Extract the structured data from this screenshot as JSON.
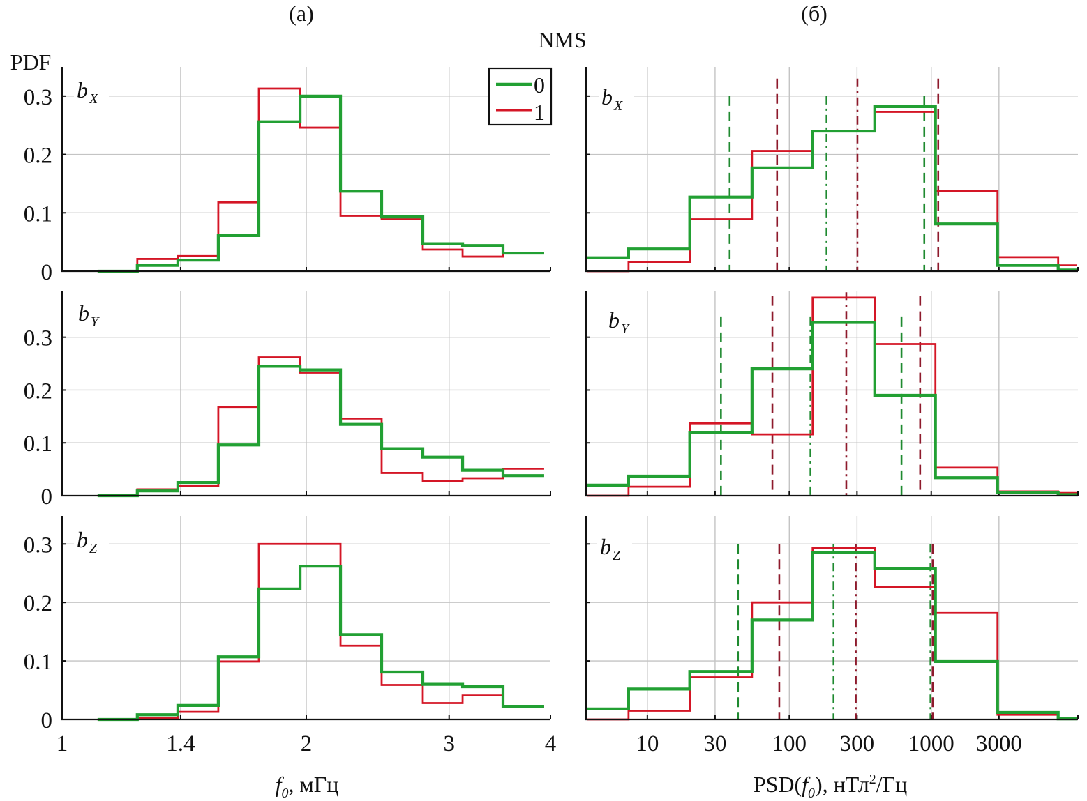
{
  "figure": {
    "title": "NMS",
    "panel_letters": [
      "(a)",
      "(б)"
    ],
    "ylabel": "PDF",
    "legend": {
      "entries": [
        {
          "label": "0",
          "color": "#22a033"
        },
        {
          "label": "1",
          "color": "#d41626"
        }
      ]
    },
    "colors": {
      "series_0": "#22a033",
      "series_1": "#d41626",
      "vline_0": "#1f8a30",
      "vline_1": "#8e1a2c",
      "grid": "#c4c4c4"
    }
  },
  "chart_data": [
    {
      "id": "a-bx",
      "type": "line",
      "subtype": "step-histogram",
      "column": "a",
      "row": 0,
      "component": "b",
      "component_sub": "X",
      "xscale": "log",
      "xlim": [
        1,
        4
      ],
      "ylim": [
        0,
        0.35
      ],
      "xticks": [
        1,
        1.4,
        2,
        3,
        4
      ],
      "xtick_labels": [
        "1",
        "1.4",
        "2",
        "3",
        "4"
      ],
      "xgrid": [
        1.4,
        2,
        3
      ],
      "yticks": [
        0,
        0.1,
        0.2,
        0.3
      ],
      "ytick_labels": [
        "0",
        "0.1",
        "0.2",
        "0.3"
      ],
      "show_xtick_labels": false,
      "show_ytick_labels": true,
      "grid": true,
      "bin_edges": [
        1.106,
        1.238,
        1.389,
        1.558,
        1.748,
        1.965,
        2.204,
        2.477,
        2.784,
        3.117,
        3.496,
        3.929
      ],
      "series": [
        {
          "name": "0",
          "values": [
            0.0,
            0.01,
            0.019,
            0.061,
            0.256,
            0.3,
            0.137,
            0.093,
            0.047,
            0.044,
            0.031
          ]
        },
        {
          "name": "1",
          "values": [
            0.0,
            0.021,
            0.026,
            0.118,
            0.313,
            0.246,
            0.095,
            0.089,
            0.037,
            0.025,
            0.031
          ]
        }
      ],
      "vlines": []
    },
    {
      "id": "b-bx",
      "type": "line",
      "subtype": "step-histogram",
      "column": "b",
      "row": 0,
      "component": "b",
      "component_sub": "X",
      "xscale": "log",
      "xlim": [
        3.7,
        10800
      ],
      "ylim": [
        0,
        0.35
      ],
      "xticks": [
        10,
        30,
        100,
        300,
        1000,
        3000
      ],
      "xtick_labels": [
        "10",
        "30",
        "100",
        "300",
        "1000",
        "3000"
      ],
      "xgrid": [
        10,
        30,
        100,
        300,
        1000,
        3000
      ],
      "yticks": [
        0,
        0.1,
        0.2,
        0.3
      ],
      "ytick_labels": [
        "",
        "",
        "",
        ""
      ],
      "show_xtick_labels": false,
      "show_ytick_labels": false,
      "grid": true,
      "bin_edges": [
        3.74,
        7.37,
        19.9,
        54.6,
        146,
        400,
        1070,
        2930,
        7840,
        10640
      ],
      "series": [
        {
          "name": "0",
          "values": [
            0.023,
            0.038,
            0.127,
            0.177,
            0.24,
            0.282,
            0.081,
            0.01,
            0.002
          ]
        },
        {
          "name": "1",
          "values": [
            0.0,
            0.016,
            0.089,
            0.206,
            0.24,
            0.273,
            0.137,
            0.024,
            0.01
          ]
        }
      ],
      "vlines": [
        {
          "series": "0",
          "style": "dashed",
          "x": 38,
          "top": 0.3
        },
        {
          "series": "1",
          "style": "dashed",
          "x": 82,
          "top": 0.33
        },
        {
          "series": "0",
          "style": "dashdot",
          "x": 183,
          "top": 0.3
        },
        {
          "series": "1",
          "style": "dashdot",
          "x": 302,
          "top": 0.33
        },
        {
          "series": "0",
          "style": "dashed",
          "x": 893,
          "top": 0.3
        },
        {
          "series": "1",
          "style": "dashed",
          "x": 1120,
          "top": 0.33
        }
      ]
    },
    {
      "id": "a-by",
      "type": "line",
      "subtype": "step-histogram",
      "column": "a",
      "row": 1,
      "component": "b",
      "component_sub": "Y",
      "xscale": "log",
      "xlim": [
        1,
        4
      ],
      "ylim": [
        0,
        0.388
      ],
      "xticks": [
        1,
        1.4,
        2,
        3,
        4
      ],
      "xtick_labels": [
        "1",
        "1.4",
        "2",
        "3",
        "4"
      ],
      "xgrid": [
        1.4,
        2,
        3
      ],
      "yticks": [
        0,
        0.1,
        0.2,
        0.3
      ],
      "ytick_labels": [
        "0",
        "0.1",
        "0.2",
        "0.3"
      ],
      "show_xtick_labels": false,
      "show_ytick_labels": true,
      "grid": true,
      "bin_edges": [
        1.106,
        1.238,
        1.389,
        1.558,
        1.748,
        1.965,
        2.204,
        2.477,
        2.784,
        3.117,
        3.496,
        3.929
      ],
      "series": [
        {
          "name": "0",
          "values": [
            0.0,
            0.009,
            0.025,
            0.096,
            0.245,
            0.238,
            0.135,
            0.089,
            0.073,
            0.048,
            0.038
          ]
        },
        {
          "name": "1",
          "values": [
            0.0,
            0.012,
            0.018,
            0.168,
            0.262,
            0.233,
            0.146,
            0.043,
            0.028,
            0.033,
            0.051
          ]
        }
      ],
      "vlines": []
    },
    {
      "id": "b-by",
      "type": "line",
      "subtype": "step-histogram",
      "column": "b",
      "row": 1,
      "component": "b",
      "component_sub": "Y",
      "xscale": "log",
      "xlim": [
        3.7,
        10800
      ],
      "ylim": [
        0,
        0.388
      ],
      "xticks": [
        10,
        30,
        100,
        300,
        1000,
        3000
      ],
      "xtick_labels": [
        "10",
        "30",
        "100",
        "300",
        "1000",
        "3000"
      ],
      "xgrid": [
        10,
        30,
        100,
        300,
        1000,
        3000
      ],
      "yticks": [
        0,
        0.1,
        0.2,
        0.3
      ],
      "ytick_labels": [
        "",
        "",
        "",
        ""
      ],
      "show_xtick_labels": false,
      "show_ytick_labels": false,
      "grid": true,
      "bin_edges": [
        3.74,
        7.37,
        19.9,
        54.6,
        146,
        400,
        1070,
        2930,
        7840,
        10640
      ],
      "series": [
        {
          "name": "0",
          "values": [
            0.02,
            0.037,
            0.12,
            0.24,
            0.328,
            0.19,
            0.034,
            0.006,
            0.002
          ]
        },
        {
          "name": "1",
          "values": [
            0.0,
            0.017,
            0.137,
            0.116,
            0.375,
            0.287,
            0.053,
            0.008,
            0.005
          ]
        }
      ],
      "vlines": [
        {
          "series": "0",
          "style": "dashed",
          "x": 33,
          "top": 0.338
        },
        {
          "series": "1",
          "style": "dashed",
          "x": 76,
          "top": 0.378
        },
        {
          "series": "0",
          "style": "dashdot",
          "x": 141,
          "top": 0.338
        },
        {
          "series": "1",
          "style": "dashdot",
          "x": 252,
          "top": 0.385
        },
        {
          "series": "0",
          "style": "dashed",
          "x": 617,
          "top": 0.338
        },
        {
          "series": "1",
          "style": "dashed",
          "x": 835,
          "top": 0.378
        }
      ]
    },
    {
      "id": "a-bz",
      "type": "line",
      "subtype": "step-histogram",
      "column": "a",
      "row": 2,
      "component": "b",
      "component_sub": "Z",
      "xscale": "log",
      "xlim": [
        1,
        4
      ],
      "ylim": [
        0,
        0.348
      ],
      "xticks": [
        1,
        1.4,
        2,
        3,
        4
      ],
      "xtick_labels": [
        "1",
        "1.4",
        "2",
        "3",
        "4"
      ],
      "xgrid": [
        1.4,
        2,
        3
      ],
      "yticks": [
        0,
        0.1,
        0.2,
        0.3
      ],
      "ytick_labels": [
        "0",
        "0.1",
        "0.2",
        "0.3"
      ],
      "show_xtick_labels": true,
      "show_ytick_labels": true,
      "grid": true,
      "xlabel": "f",
      "xlabel_sub": "0",
      "xlabel_rest": ", мГц",
      "bin_edges": [
        1.106,
        1.238,
        1.389,
        1.558,
        1.748,
        1.965,
        2.204,
        2.477,
        2.784,
        3.117,
        3.496,
        3.929
      ],
      "series": [
        {
          "name": "0",
          "values": [
            0.0,
            0.008,
            0.024,
            0.107,
            0.223,
            0.262,
            0.145,
            0.081,
            0.06,
            0.056,
            0.022
          ]
        },
        {
          "name": "1",
          "values": [
            0.0,
            0.002,
            0.013,
            0.099,
            0.3,
            0.3,
            0.126,
            0.059,
            0.028,
            0.041,
            0.022
          ]
        }
      ],
      "vlines": []
    },
    {
      "id": "b-bz",
      "type": "line",
      "subtype": "step-histogram",
      "column": "b",
      "row": 2,
      "component": "b",
      "component_sub": "Z",
      "xscale": "log",
      "xlim": [
        3.7,
        10800
      ],
      "ylim": [
        0,
        0.348
      ],
      "xticks": [
        10,
        30,
        100,
        300,
        1000,
        3000
      ],
      "xtick_labels": [
        "10",
        "30",
        "100",
        "300",
        "1000",
        "3000"
      ],
      "xgrid": [
        10,
        30,
        100,
        300,
        1000,
        3000
      ],
      "yticks": [
        0,
        0.1,
        0.2,
        0.3
      ],
      "ytick_labels": [
        "",
        "",
        "",
        ""
      ],
      "show_xtick_labels": true,
      "show_ytick_labels": false,
      "grid": true,
      "xlabel": "PSD(",
      "xlabel_f": "f",
      "xlabel_sub": "0",
      "xlabel_rest": "), нТл",
      "xlabel_sup": "2",
      "xlabel_tail": "/Гц",
      "bin_edges": [
        3.74,
        7.37,
        19.9,
        54.6,
        146,
        400,
        1070,
        2930,
        7840,
        10640
      ],
      "series": [
        {
          "name": "0",
          "values": [
            0.018,
            0.052,
            0.082,
            0.17,
            0.285,
            0.258,
            0.099,
            0.012,
            0.001
          ]
        },
        {
          "name": "1",
          "values": [
            0.0,
            0.015,
            0.072,
            0.2,
            0.293,
            0.226,
            0.182,
            0.008,
            0.001
          ]
        }
      ],
      "vlines": [
        {
          "series": "0",
          "style": "dashed",
          "x": 43.5,
          "top": 0.3
        },
        {
          "series": "1",
          "style": "dashed",
          "x": 85,
          "top": 0.3
        },
        {
          "series": "0",
          "style": "dashdot",
          "x": 205,
          "top": 0.3
        },
        {
          "series": "1",
          "style": "dashdot",
          "x": 294,
          "top": 0.3
        },
        {
          "series": "0",
          "style": "dashdot",
          "x": 988,
          "top": 0.3
        },
        {
          "series": "1",
          "style": "dashed",
          "x": 1024,
          "top": 0.3
        }
      ]
    }
  ]
}
